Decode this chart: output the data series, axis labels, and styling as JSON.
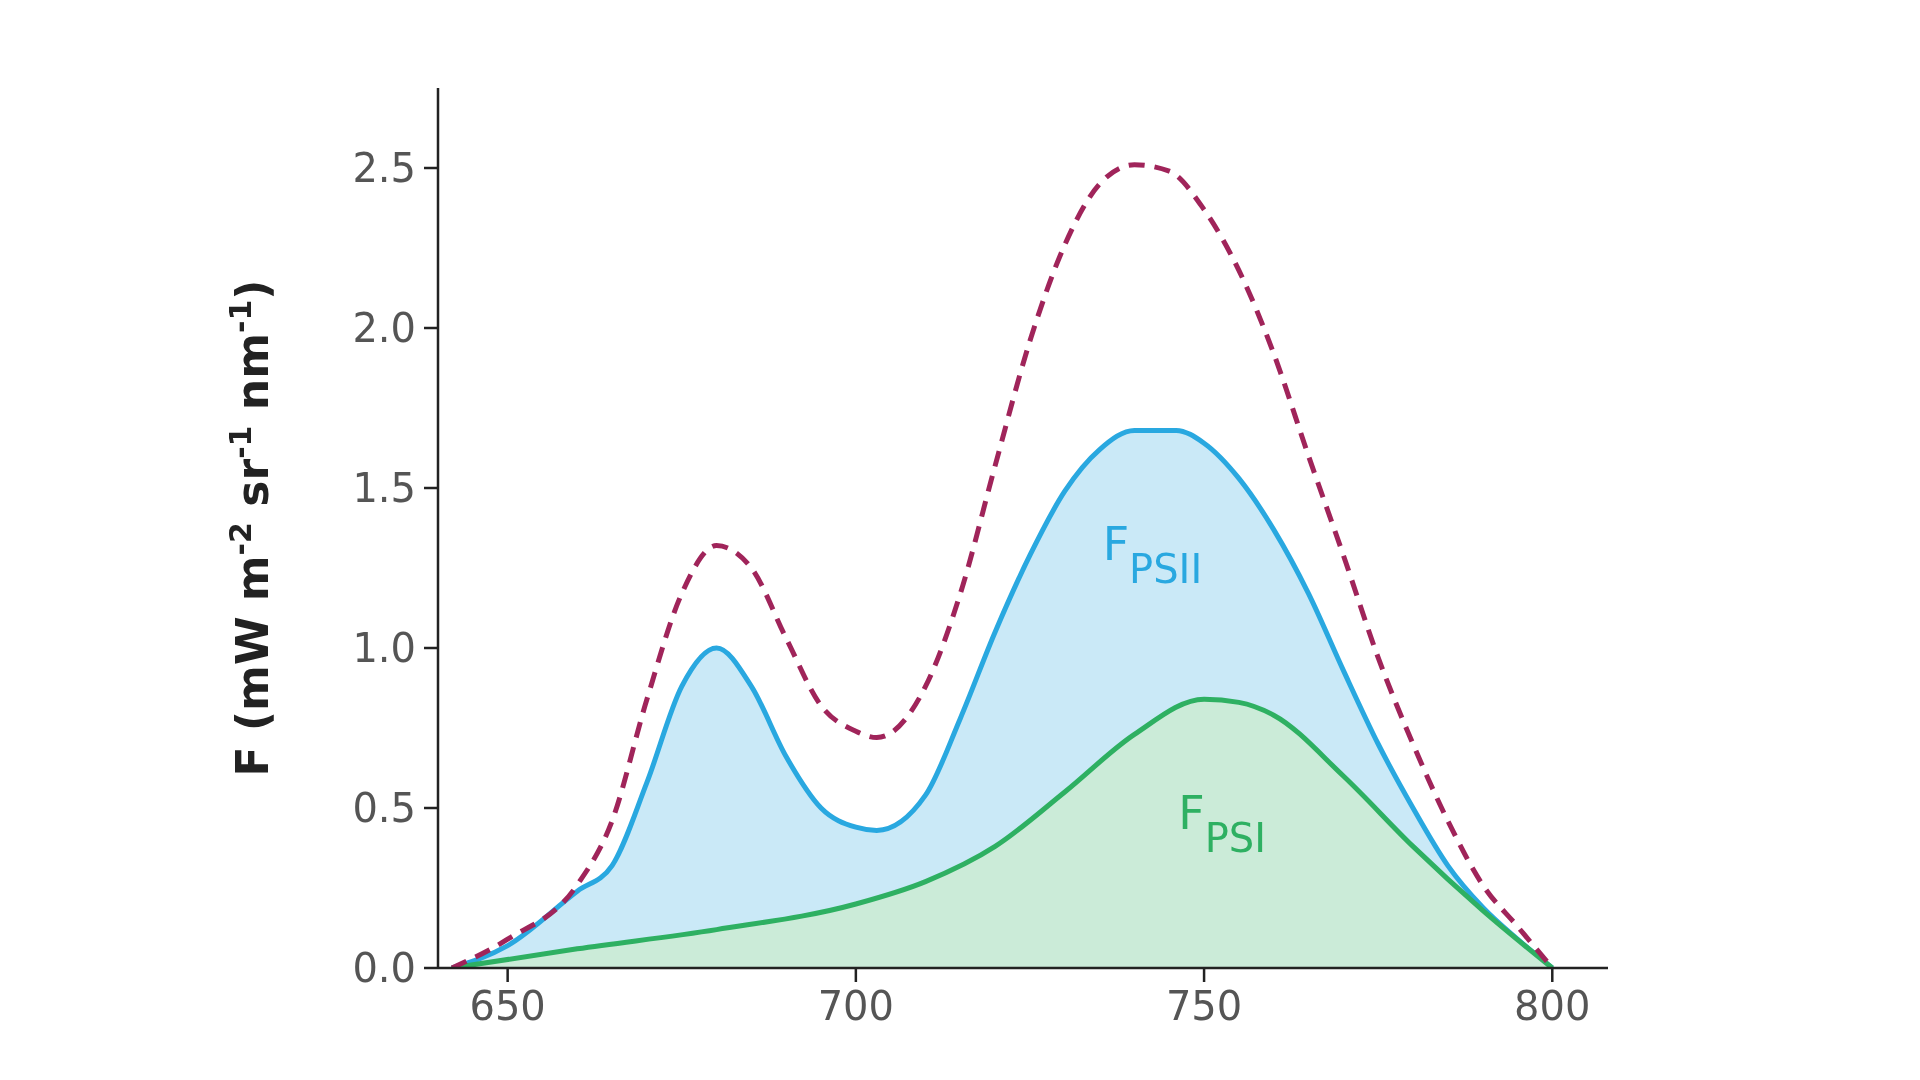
{
  "chart_data": {
    "type": "area",
    "ylabel": "F (mW m$^{-2}$ sr$^{-1}$ nm$^{-1}$)",
    "xlim": [
      640,
      808
    ],
    "xticks": [
      650,
      700,
      750,
      800
    ],
    "ylim": [
      0,
      2.75
    ],
    "yticks": [
      {
        "value": 0,
        "label": "0.0"
      },
      0.5,
      {
        "value": 1,
        "label": "1.0"
      },
      1.5,
      {
        "value": 2,
        "label": "2.0"
      },
      2.5
    ],
    "grid": false,
    "legend": false,
    "series": [
      {
        "name": "F$_{PSII}$",
        "color": "#29a8e0",
        "x": [
          642,
          650,
          660,
          665,
          670,
          675,
          680,
          685,
          690,
          695,
          700,
          703,
          710,
          715,
          720,
          725,
          730,
          735,
          740,
          746,
          750,
          755,
          760,
          765,
          770,
          775,
          780,
          785,
          790,
          795,
          800
        ],
        "values": [
          0,
          0.07,
          0.24,
          0.32,
          0.58,
          0.88,
          1.0,
          0.88,
          0.66,
          0.5,
          0.44,
          0.43,
          0.54,
          0.78,
          1.05,
          1.29,
          1.49,
          1.62,
          1.68,
          1.68,
          1.64,
          1.53,
          1.37,
          1.17,
          0.93,
          0.7,
          0.5,
          0.32,
          0.19,
          0.09,
          0
        ]
      },
      {
        "name": "F$_{PSI}$",
        "color": "#2eb062",
        "x": [
          642,
          660,
          680,
          700,
          710,
          720,
          730,
          740,
          750,
          755,
          760,
          770,
          780,
          790,
          800
        ],
        "values": [
          0,
          0.06,
          0.12,
          0.2,
          0.27,
          0.38,
          0.55,
          0.73,
          0.84,
          0.83,
          0.79,
          0.6,
          0.38,
          0.18,
          0
        ]
      },
      {
        "type": "line",
        "color": "#a0245a",
        "line_style": "dashed",
        "x": [
          642,
          650,
          660,
          665,
          670,
          675,
          680,
          685,
          690,
          695,
          700,
          703,
          710,
          715,
          720,
          725,
          730,
          735,
          740,
          745,
          750,
          755,
          760,
          765,
          770,
          775,
          780,
          785,
          790,
          795,
          800
        ],
        "values": [
          0,
          0.09,
          0.26,
          0.46,
          0.84,
          1.17,
          1.32,
          1.25,
          1.03,
          0.82,
          0.74,
          0.72,
          0.88,
          1.17,
          1.57,
          1.96,
          2.26,
          2.45,
          2.51,
          2.49,
          2.37,
          2.18,
          1.92,
          1.6,
          1.29,
          0.97,
          0.7,
          0.46,
          0.26,
          0.13,
          0
        ]
      }
    ]
  }
}
